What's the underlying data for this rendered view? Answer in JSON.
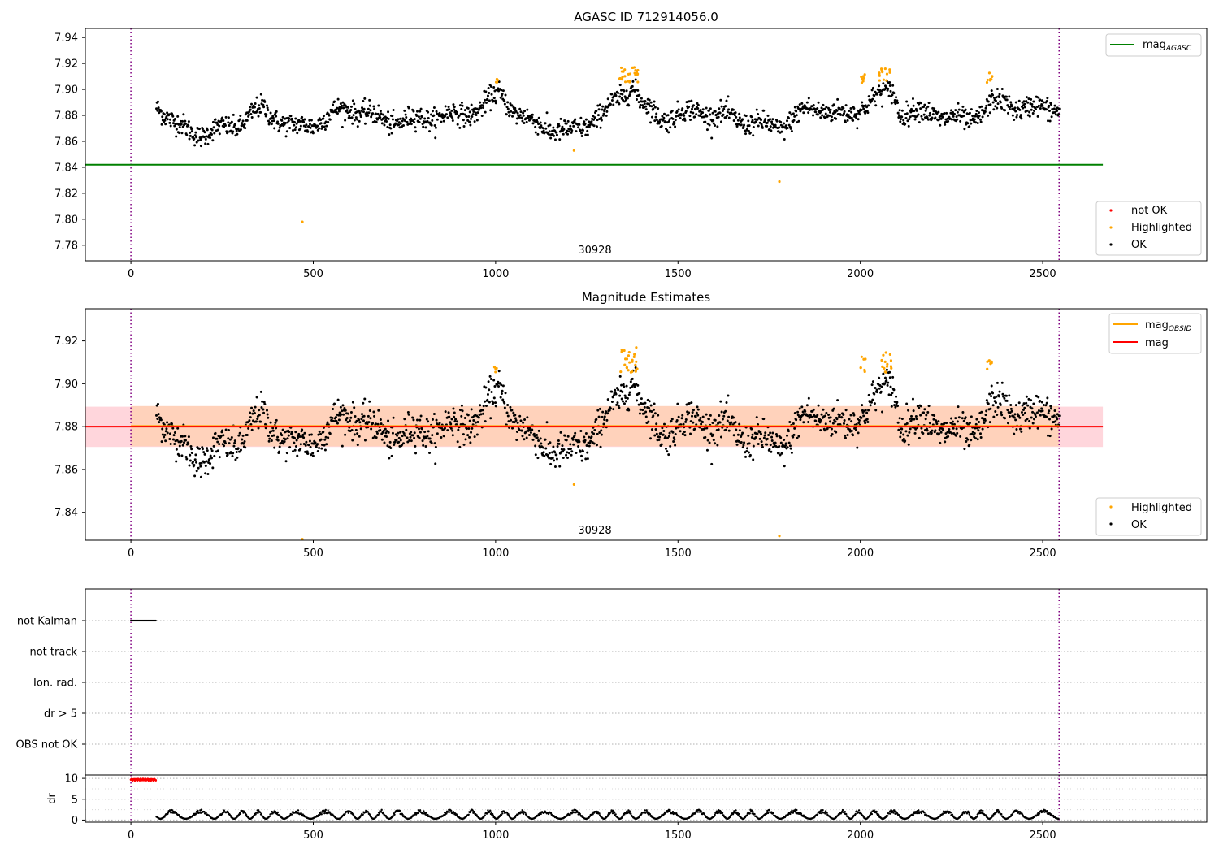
{
  "colors": {
    "ok": "#000000",
    "highlighted": "#ffa500",
    "not_ok": "#ff0000",
    "mag_agasc": "#008000",
    "mag_obsid": "#ffa500",
    "mag": "#ff0000",
    "band_outer": "#ffd6dc",
    "band_inner": "#ffd2bb",
    "obs_marker": "#800080",
    "grid": "#b0b0b0"
  },
  "chart_data": [
    {
      "id": "agasc",
      "type": "scatter",
      "title": "AGASC ID 712914056.0",
      "xlim": [
        -125,
        2950
      ],
      "ylim": [
        7.768,
        7.947
      ],
      "xticks": [
        "0",
        "500",
        "1000",
        "1500",
        "2000",
        "2500"
      ],
      "yticks": [
        "7.78",
        "7.80",
        "7.82",
        "7.84",
        "7.86",
        "7.88",
        "7.90",
        "7.92",
        "7.94"
      ],
      "obs_boundaries": [
        0,
        2545
      ],
      "obsid_label": "30928",
      "lines": [
        {
          "name": "mag_AGASC",
          "y": 7.842,
          "x": [
            -125,
            2665
          ]
        }
      ],
      "legend_top": {
        "position": "top-right",
        "entries": [
          {
            "name": "mag",
            "sub": "AGASC",
            "kind": "line",
            "color": "#008000"
          }
        ]
      },
      "legend_bottom": {
        "position": "bottom-right",
        "entries": [
          "not OK",
          "Highlighted",
          "OK"
        ]
      },
      "ok_trend": [
        [
          70,
          7.887
        ],
        [
          120,
          7.872
        ],
        [
          200,
          7.868
        ],
        [
          300,
          7.872
        ],
        [
          360,
          7.884
        ],
        [
          450,
          7.872
        ],
        [
          520,
          7.876
        ],
        [
          600,
          7.884
        ],
        [
          700,
          7.878
        ],
        [
          800,
          7.876
        ],
        [
          900,
          7.88
        ],
        [
          960,
          7.888
        ],
        [
          1010,
          7.898
        ],
        [
          1060,
          7.88
        ],
        [
          1100,
          7.872
        ],
        [
          1200,
          7.868
        ],
        [
          1240,
          7.874
        ],
        [
          1300,
          7.882
        ],
        [
          1340,
          7.892
        ],
        [
          1375,
          7.902
        ],
        [
          1400,
          7.888
        ],
        [
          1450,
          7.88
        ],
        [
          1550,
          7.884
        ],
        [
          1600,
          7.878
        ],
        [
          1700,
          7.876
        ],
        [
          1780,
          7.872
        ],
        [
          1850,
          7.882
        ],
        [
          1900,
          7.884
        ],
        [
          1960,
          7.88
        ],
        [
          2020,
          7.892
        ],
        [
          2060,
          7.896
        ],
        [
          2090,
          7.898
        ],
        [
          2110,
          7.88
        ],
        [
          2200,
          7.882
        ],
        [
          2250,
          7.88
        ],
        [
          2300,
          7.876
        ],
        [
          2360,
          7.888
        ],
        [
          2420,
          7.886
        ],
        [
          2545,
          7.888
        ]
      ],
      "ok_noise": 0.0055,
      "ok_x_range": [
        70,
        2545
      ],
      "ok_count": 1700,
      "highlight_clusters": [
        {
          "x": [
            995,
            1010
          ],
          "y": [
            7.905,
            7.908
          ],
          "n": 4
        },
        {
          "x": [
            1340,
            1390
          ],
          "y": [
            7.905,
            7.917
          ],
          "n": 26
        },
        {
          "x": [
            2000,
            2015
          ],
          "y": [
            7.905,
            7.913
          ],
          "n": 7
        },
        {
          "x": [
            2050,
            2085
          ],
          "y": [
            7.905,
            7.916
          ],
          "n": 14
        },
        {
          "x": [
            2345,
            2362
          ],
          "y": [
            7.905,
            7.913
          ],
          "n": 8
        }
      ],
      "highlight_points": [
        [
          470,
          7.798
        ],
        [
          1215,
          7.853
        ],
        [
          1778,
          7.829
        ]
      ]
    },
    {
      "id": "mag_estimates",
      "type": "scatter",
      "title": "Magnitude Estimates",
      "xlim": [
        -125,
        2950
      ],
      "ylim": [
        7.827,
        7.935
      ],
      "xticks": [
        "0",
        "500",
        "1000",
        "1500",
        "2000",
        "2500"
      ],
      "yticks": [
        "7.84",
        "7.86",
        "7.88",
        "7.90",
        "7.92"
      ],
      "obs_boundaries": [
        0,
        2545
      ],
      "obsid_label": "30928",
      "lines": [
        {
          "name": "mag_OBSID",
          "y": 7.8803,
          "x": [
            0,
            2545
          ]
        },
        {
          "name": "mag",
          "y": 7.88,
          "x": [
            -125,
            2665
          ]
        }
      ],
      "bands": [
        {
          "name": "mag",
          "y": [
            7.8705,
            7.8893
          ],
          "x": [
            -125,
            2665
          ]
        },
        {
          "name": "mag_OBSID",
          "y": [
            7.8708,
            7.8896
          ],
          "x": [
            0,
            2545
          ]
        }
      ],
      "legend_top": {
        "position": "top-right",
        "entries": [
          {
            "name": "mag",
            "sub": "OBSID",
            "kind": "line",
            "color": "#ffa500"
          },
          {
            "name": "mag",
            "sub": "",
            "kind": "line",
            "color": "#ff0000"
          }
        ]
      },
      "legend_bottom": {
        "position": "bottom-right",
        "entries": [
          "Highlighted",
          "OK"
        ]
      },
      "ok_trend_ref": "agasc",
      "highlight_clusters": [
        {
          "x": [
            995,
            1010
          ],
          "y": [
            7.905,
            7.908
          ],
          "n": 4
        },
        {
          "x": [
            1340,
            1390
          ],
          "y": [
            7.905,
            7.917
          ],
          "n": 26
        },
        {
          "x": [
            2000,
            2015
          ],
          "y": [
            7.905,
            7.913
          ],
          "n": 7
        },
        {
          "x": [
            2050,
            2085
          ],
          "y": [
            7.905,
            7.916
          ],
          "n": 14
        },
        {
          "x": [
            2345,
            2362
          ],
          "y": [
            7.905,
            7.913
          ],
          "n": 8
        }
      ],
      "highlight_points": [
        [
          470,
          7.8275
        ],
        [
          1215,
          7.853
        ],
        [
          1778,
          7.829
        ]
      ]
    },
    {
      "id": "flags",
      "type": "scatter",
      "xlim": [
        -125,
        2950
      ],
      "categories": [
        "OBS not OK",
        "dr > 5",
        "Ion. rad.",
        "not track",
        "not Kalman"
      ],
      "obs_boundaries": [
        0,
        2545
      ],
      "flagged": [
        {
          "category": "not Kalman",
          "x": [
            0,
            70
          ]
        }
      ]
    },
    {
      "id": "dr",
      "type": "scatter",
      "ylabel": "dr",
      "xlim": [
        -125,
        2950
      ],
      "ylim": [
        -0.5,
        10.8
      ],
      "xticks": [
        "0",
        "500",
        "1000",
        "1500",
        "2000",
        "2500"
      ],
      "yticks": [
        "0",
        "5",
        "10"
      ],
      "obs_boundaries": [
        0,
        2545
      ],
      "dr_limit": 10,
      "not_ok": {
        "x": [
          0,
          70
        ],
        "y": 9.7
      },
      "ok_x_range": [
        70,
        2545
      ],
      "ok_range": [
        0.3,
        2.5
      ]
    }
  ]
}
